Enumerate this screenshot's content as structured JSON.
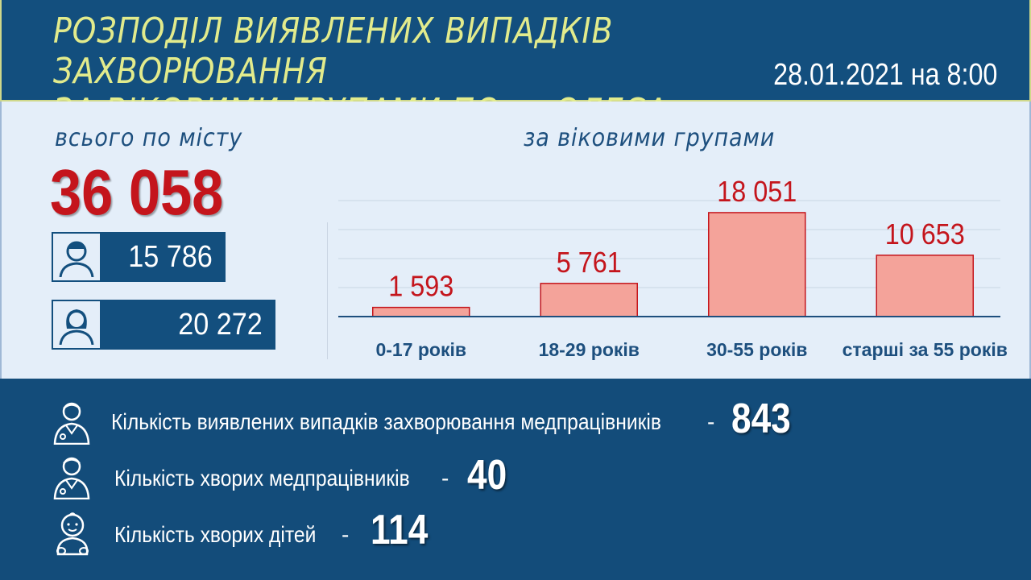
{
  "header": {
    "title_line1": "РОЗПОДІЛ ВИЯВЛЕНИХ ВИПАДКІВ ЗАХВОРЮВАННЯ",
    "title_line2": "ЗА ВІКОВИМИ ГРУПАМИ ПО м. ОДЕСА",
    "date": "28.01.2021 на 8:00"
  },
  "summary": {
    "label": "всього по місту",
    "total": "36 058",
    "male": {
      "icon": "male-avatar-icon",
      "value": "15 786"
    },
    "female": {
      "icon": "female-avatar-icon",
      "value": "20 272"
    }
  },
  "chart_data": {
    "type": "bar",
    "title": "за віковими групами",
    "categories": [
      "0-17 років",
      "18-29 років",
      "30-55 років",
      "старші за 55 років"
    ],
    "values": [
      1593,
      5761,
      18051,
      10653
    ],
    "value_labels": [
      "1 593",
      "5 761",
      "18 051",
      "10 653"
    ],
    "ylim": [
      0,
      20000
    ],
    "grid": true,
    "colors": {
      "bar_fill": "#f4a39a",
      "bar_stroke": "#c4151c",
      "value_label": "#c4151c",
      "category_label": "#1d4f7e"
    }
  },
  "stats": [
    {
      "icon": "doctor-icon",
      "label": "Кількість виявлених випадків захворювання медпрацівників",
      "dash": "-",
      "value": "843"
    },
    {
      "icon": "doctor-icon",
      "label": "Кількість хворих медпрацівників",
      "dash": "-",
      "value": "40"
    },
    {
      "icon": "baby-icon",
      "label": "Кількість хворих дітей",
      "dash": "-",
      "value": "114"
    }
  ],
  "colors": {
    "header_bg": "#134f7e",
    "title_color": "#e2eb8c",
    "panel_bg": "#e4eef9",
    "total_color": "#c4151c"
  }
}
